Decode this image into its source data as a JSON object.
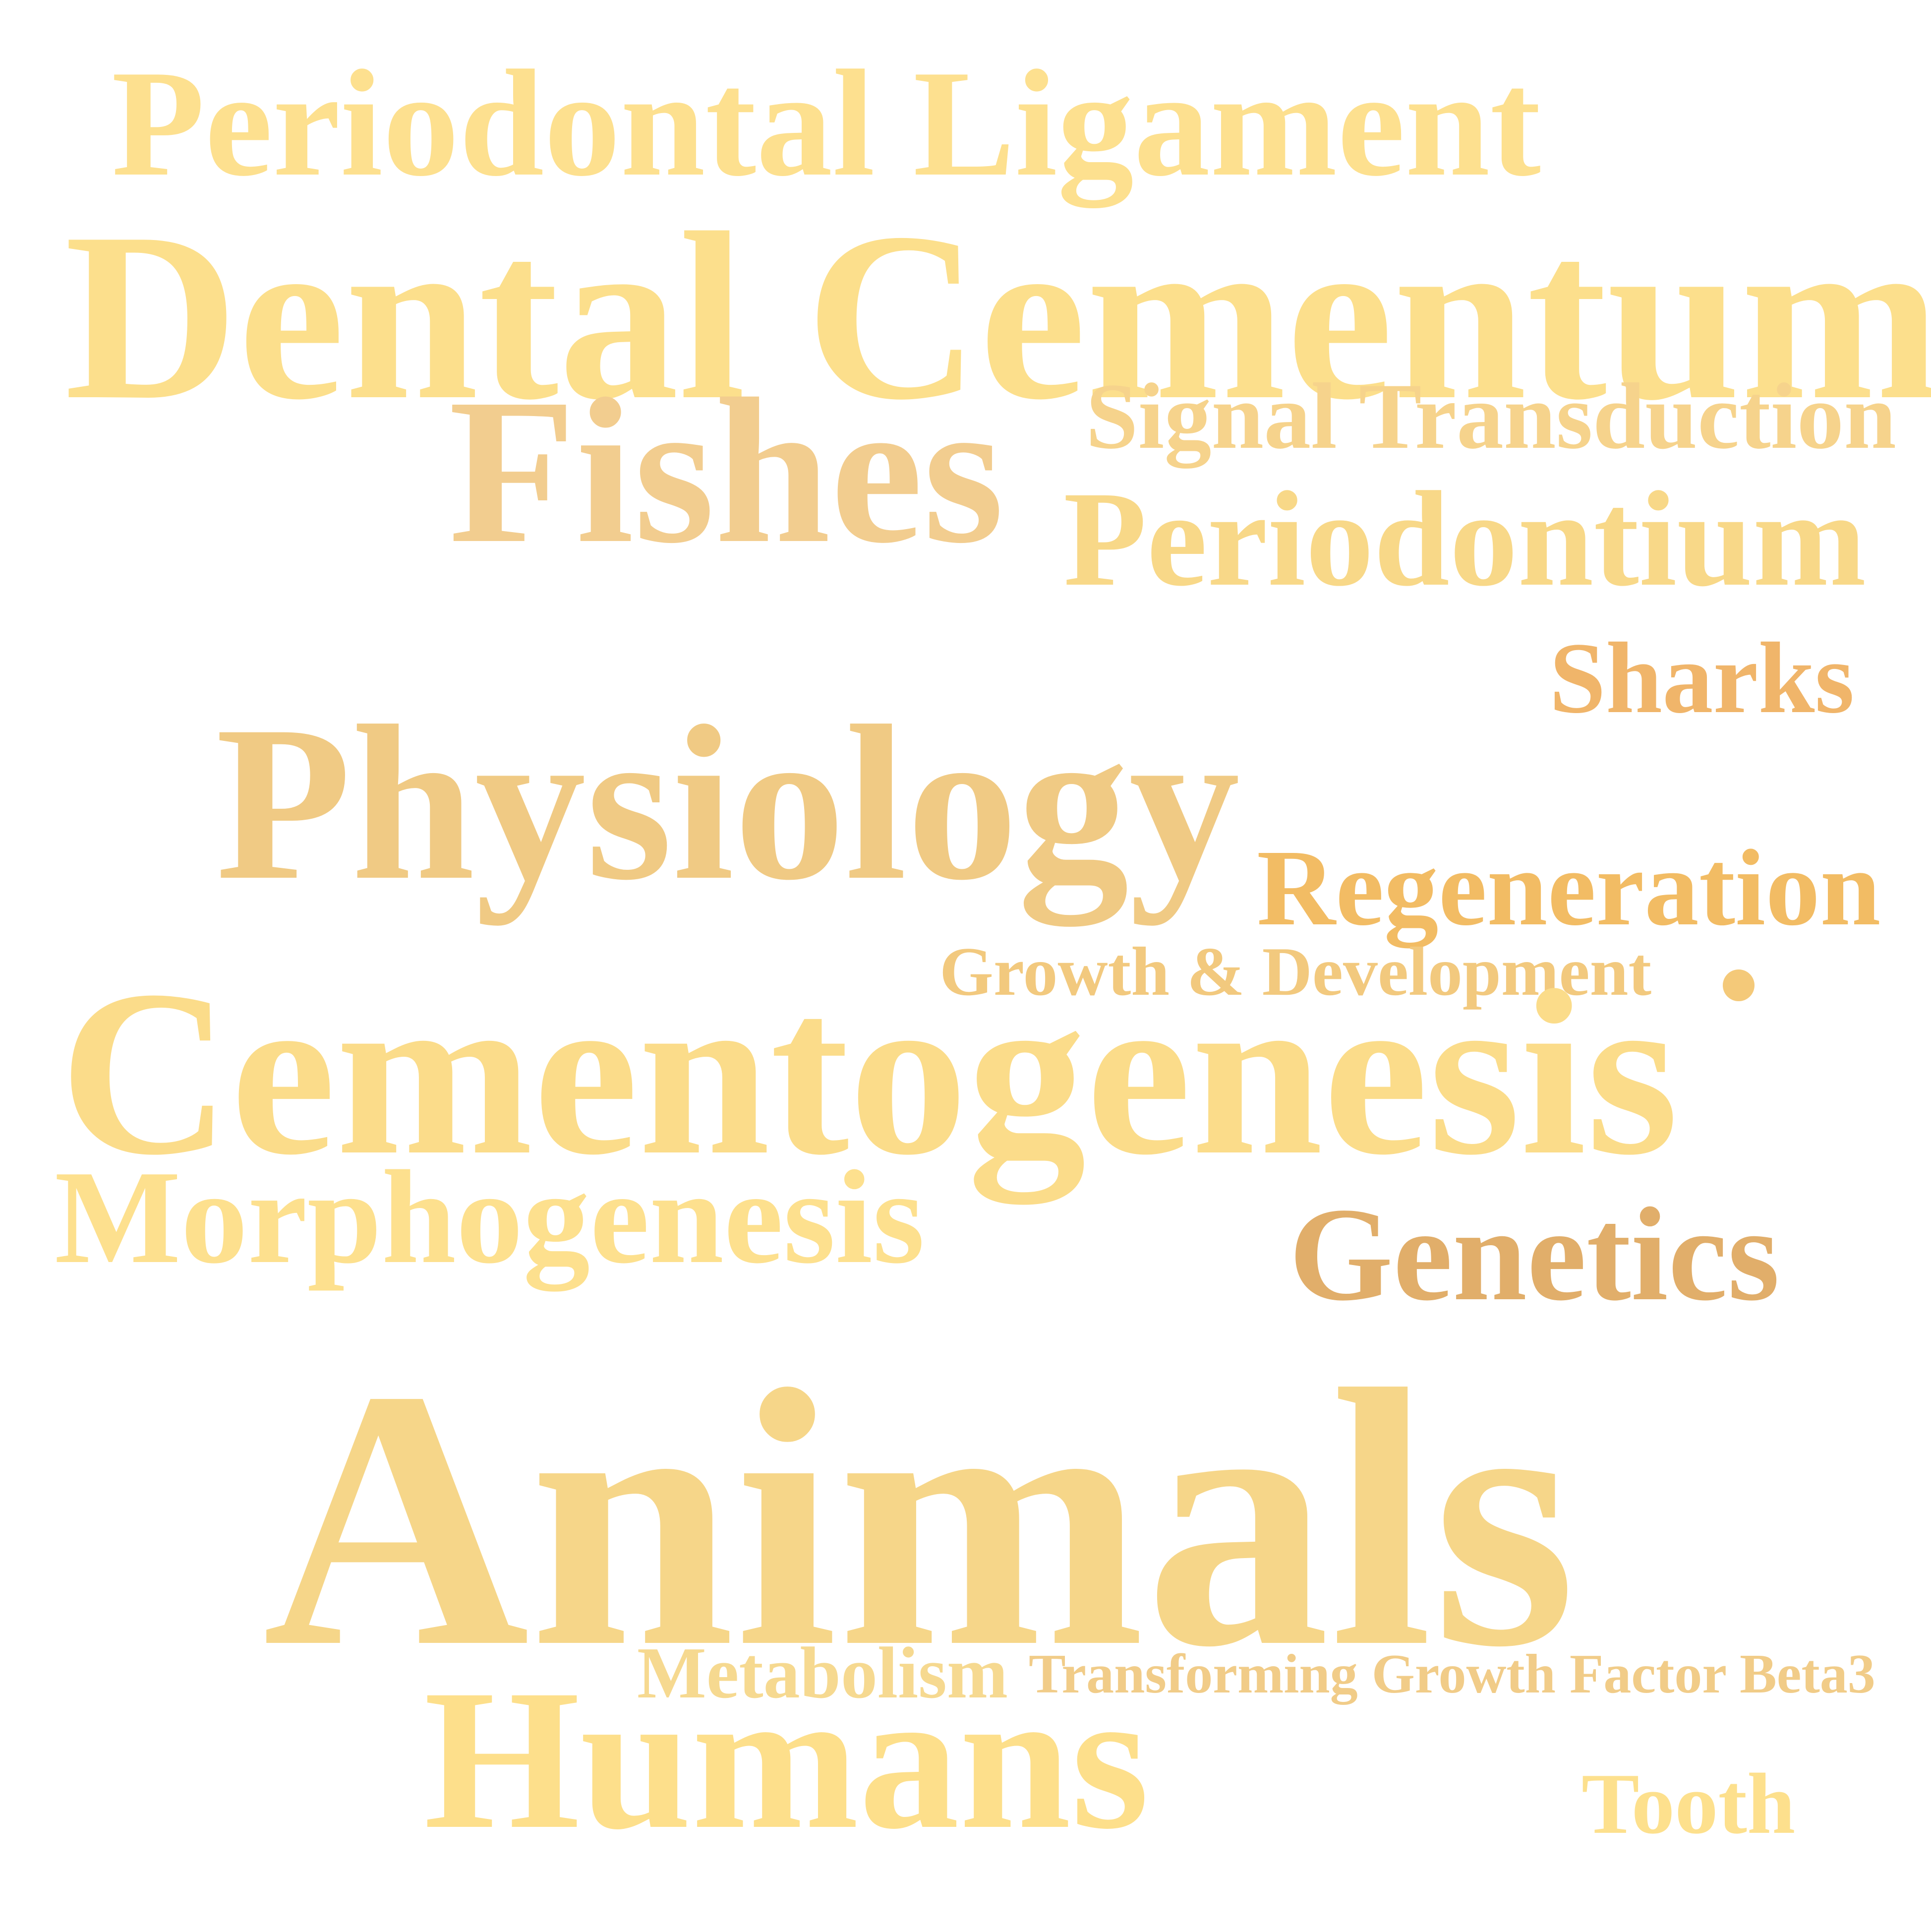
{
  "words": [
    {
      "key": "pdl",
      "text": "Periodontal Ligament",
      "color": "#fde08f"
    },
    {
      "key": "dc",
      "text": "Dental Cementum",
      "color": "#fcdf8c"
    },
    {
      "key": "fish",
      "text": "Fishes",
      "color": "#f2cd8f"
    },
    {
      "key": "sig",
      "text": "Signal Transduction",
      "color": "#f6d38c"
    },
    {
      "key": "perio",
      "text": "Periodontium",
      "color": "#f8d888"
    },
    {
      "key": "shark",
      "text": "Sharks",
      "color": "#f0b56a"
    },
    {
      "key": "phys",
      "text": "Physiology",
      "color": "#f0ca84"
    },
    {
      "key": "regen",
      "text": "Regeneration",
      "color": "#f2bc64"
    },
    {
      "key": "growth",
      "text": "Growth & Development",
      "color": "#f2c97e"
    },
    {
      "key": "cemg",
      "text": "Cementogenesis",
      "color": "#fbdc8a"
    },
    {
      "key": "morph",
      "text": "Morphogenesis",
      "color": "#fde08e"
    },
    {
      "key": "gen",
      "text": "Genetics",
      "color": "#e1ae6a"
    },
    {
      "key": "anim",
      "text": "Animals",
      "color": "#f6d689"
    },
    {
      "key": "meta",
      "text": "Metabolism",
      "color": "#f6d990"
    },
    {
      "key": "tgf",
      "text": "Transforming Growth Factor Beta3",
      "color": "#f1cc88"
    },
    {
      "key": "hum",
      "text": "Humans",
      "color": "#fddf8b"
    },
    {
      "key": "tooth",
      "text": "Tooth",
      "color": "#fde08d"
    }
  ],
  "dot_color": "#f4c979"
}
